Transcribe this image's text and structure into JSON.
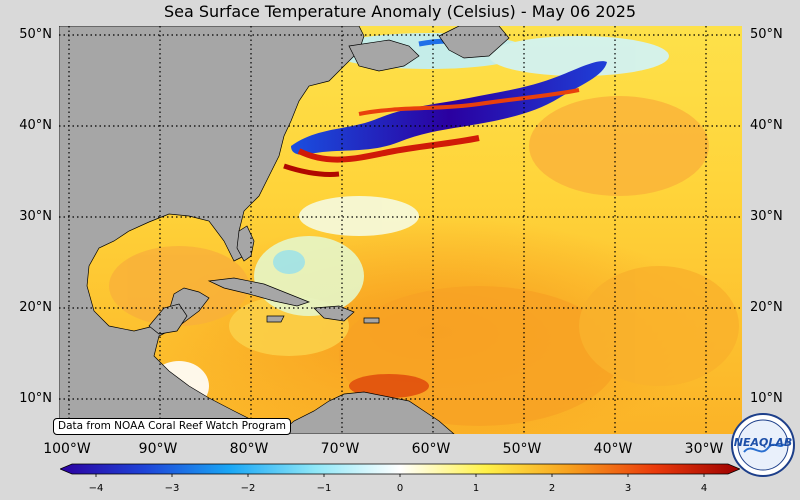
{
  "title": "Sea Surface Temperature Anomaly (Celsius) - May 06 2025",
  "source_note": "Data from NOAA Coral Reef Watch Program",
  "latitude_labels": [
    "50°N",
    "40°N",
    "30°N",
    "20°N",
    "10°N"
  ],
  "longitude_labels": [
    "100°W",
    "90°W",
    "80°W",
    "70°W",
    "60°W",
    "50°W",
    "40°W",
    "30°W"
  ],
  "colorbar": {
    "ticks": [
      "−4",
      "−3",
      "−2",
      "−1",
      "0",
      "1",
      "2",
      "3",
      "4"
    ],
    "colors": [
      "#2c00a0",
      "#1e44d8",
      "#1aa7f5",
      "#8fe7f7",
      "#ffffff",
      "#fff24a",
      "#f7a01e",
      "#ea3a0c",
      "#9c0000"
    ]
  },
  "logo_text": "NEAQLAB",
  "colors": {
    "land": "#a6a6a6",
    "background": "#d9d9d9",
    "cold_anomaly": "#2c00a0",
    "warm_anomaly": "#ffd43a"
  }
}
